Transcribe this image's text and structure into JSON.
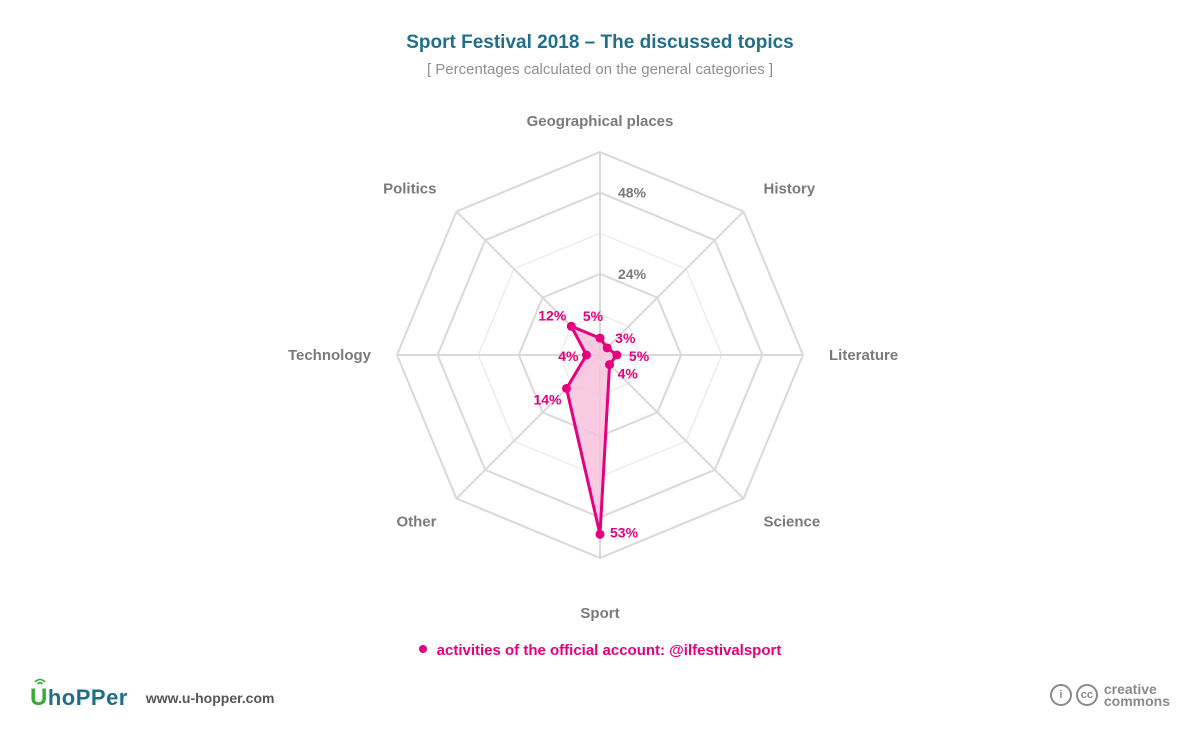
{
  "header": {
    "title": "Sport Festival 2018 – The discussed topics",
    "subtitle": "[ Percentages calculated on the general categories ]"
  },
  "chart_data": {
    "type": "radar",
    "title": "Sport Festival 2018 – The discussed topics",
    "subtitle": "[ Percentages calculated on the general categories ]",
    "categories": [
      "Geographical places",
      "History",
      "Literature",
      "Science",
      "Sport",
      "Other",
      "Technology",
      "Politics"
    ],
    "axis_tick_labels": [
      "24%",
      "48%"
    ],
    "rmax": 60,
    "series": [
      {
        "name": "activities of the official account: @ilfestivalsport",
        "values": [
          5,
          3,
          5,
          4,
          53,
          14,
          4,
          12
        ],
        "labels": [
          "5%",
          "3%",
          "5%",
          "4%",
          "53%",
          "14%",
          "4%",
          "12%"
        ],
        "color": "#e5007e",
        "fill": "#f7c2de"
      }
    ],
    "grid": true,
    "legend": "bottom"
  },
  "legend": {
    "label": "activities of the official account: @ilfestivalsport"
  },
  "footer": {
    "logo_text": "hoPPer",
    "logo_u": "U",
    "website": "www.u-hopper.com",
    "cc_line1": "creative",
    "cc_line2": "commons",
    "cc_badge1": "i",
    "cc_badge2": "cc"
  },
  "colors": {
    "accent": "#e5007e",
    "title": "#1f6f8b",
    "grid": "#d9d9d9",
    "axis_label": "#7a7a7a"
  }
}
